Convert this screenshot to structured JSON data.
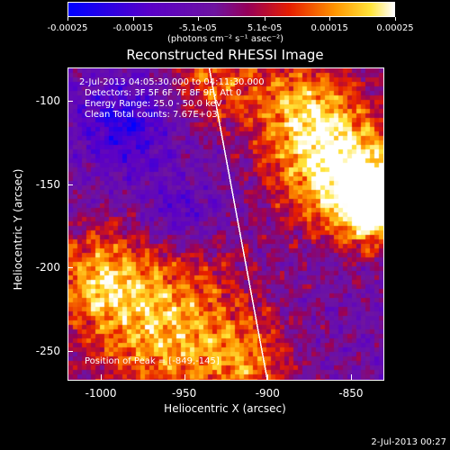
{
  "colorbar": {
    "min": -0.00025,
    "max": 0.00025,
    "ticks": [
      {
        "value": -0.00025,
        "label": "-0.00025"
      },
      {
        "value": -0.00015,
        "label": "-0.00015"
      },
      {
        "value": -5.1e-05,
        "label": "-5.1e-05"
      },
      {
        "value": 5.1e-05,
        "label": "5.1e-05"
      },
      {
        "value": 0.00015,
        "label": "0.00015"
      },
      {
        "value": 0.00025,
        "label": "0.00025"
      }
    ],
    "unit": "(photons cm⁻² s⁻¹ asec⁻²)"
  },
  "chart_data": {
    "type": "heatmap",
    "title": "Reconstructed RHESSI Image",
    "xlabel": "Heliocentric X (arcsec)",
    "ylabel": "Heliocentric Y (arcsec)",
    "xlim": [
      -1020,
      -830
    ],
    "ylim": [
      -268,
      -80
    ],
    "xticks": [
      {
        "value": -1000,
        "label": "-1000"
      },
      {
        "value": -950,
        "label": "-950"
      },
      {
        "value": -900,
        "label": "-900"
      },
      {
        "value": -850,
        "label": "-850"
      }
    ],
    "yticks": [
      {
        "value": -100,
        "label": "-100"
      },
      {
        "value": -150,
        "label": "-150"
      },
      {
        "value": -200,
        "label": "-200"
      },
      {
        "value": -250,
        "label": "-250"
      }
    ],
    "annotations": [
      "2-Jul-2013 04:05:30.000 to 04:11:30.000",
      "Detectors: 3F 5F 6F 7F 8F 9F, Att 0",
      "Energy Range: 25.0 - 50.0 keV",
      "Clean    Total counts: 7.67E+03"
    ],
    "peak": {
      "label": "Position of Peak = [-849,-145]",
      "x": -849,
      "y": -145
    },
    "limb_line": [
      {
        "x": -935,
        "y": -80
      },
      {
        "x": -900,
        "y": -268
      }
    ]
  },
  "footer": {
    "date": "2-Jul-2013 00:27"
  }
}
